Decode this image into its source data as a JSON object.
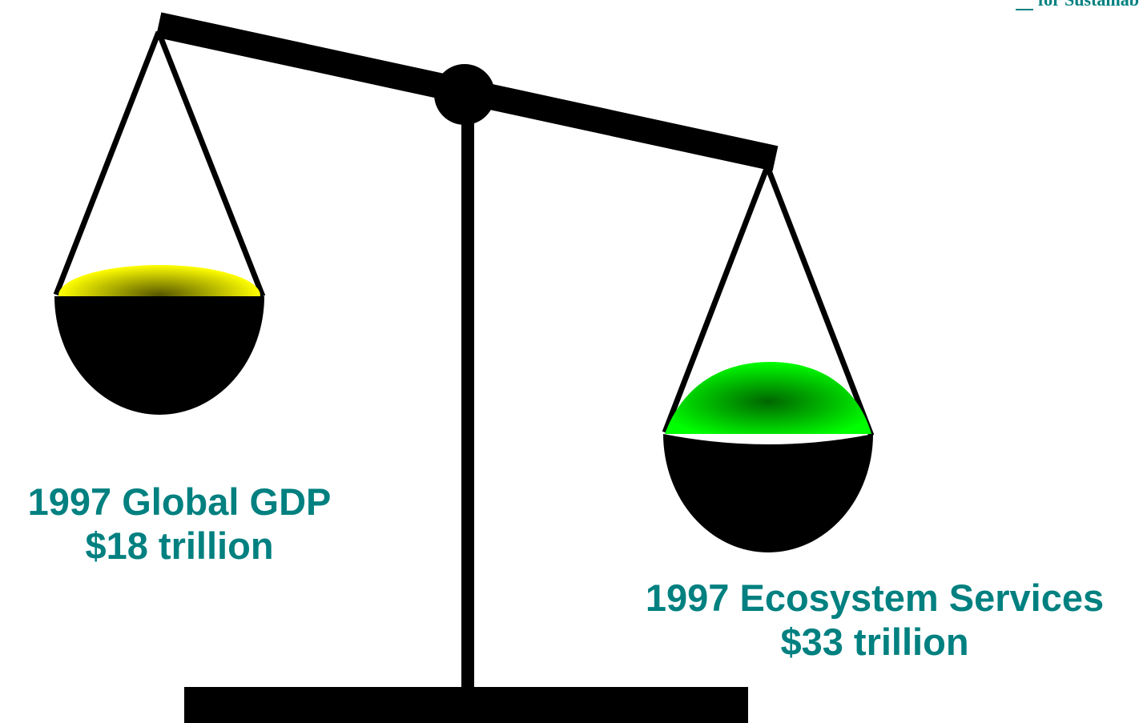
{
  "colors": {
    "ink": "#000000",
    "caption": "#008080",
    "gdp_fill": "#ffff00",
    "gdp_shade": "#555500",
    "ecosystem_fill": "#00ff00",
    "ecosystem_shade": "#006600"
  },
  "corner_note": {
    "text": "for Sustainab"
  },
  "left_pan": {
    "year_label": "1997 Global GDP",
    "value_label": "$18 trillion",
    "value_trillion": 18,
    "icon": "yellow-pan-contents"
  },
  "right_pan": {
    "year_label": "1997 Ecosystem Services",
    "value_label": "$33 trillion",
    "value_trillion": 33,
    "icon": "green-pan-contents"
  }
}
